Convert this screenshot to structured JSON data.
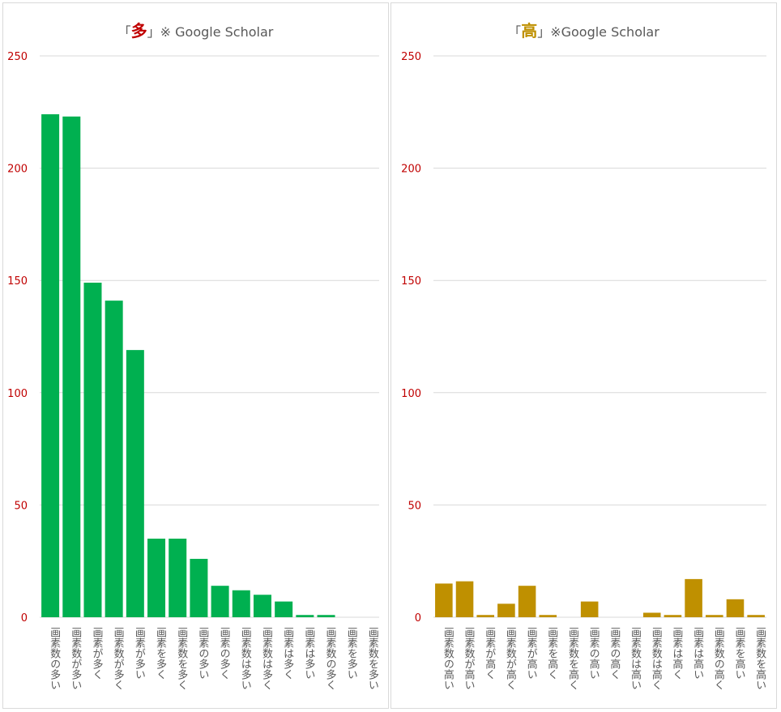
{
  "chart_data": [
    {
      "type": "bar",
      "title": {
        "open": "「",
        "kanji": "多",
        "rest": "」※ Google Scholar"
      },
      "kanji_color": "#c00000",
      "bar_color": "#00b050",
      "ylim": [
        0,
        250
      ],
      "yticks": [
        0,
        50,
        100,
        150,
        200,
        250
      ],
      "grid": true,
      "legend": "none",
      "categories": [
        "画素数の多い",
        "画素数が多い",
        "画素が多く",
        "画素数が多く",
        "画素が多い",
        "画素を多く",
        "画素数を多く",
        "画素の多い",
        "画素の多く",
        "画素数は多い",
        "画素数は多く",
        "画素は多く",
        "画素は多い",
        "画素数の多く",
        "画素を多い",
        "画素数を多い"
      ],
      "values": [
        224,
        223,
        149,
        141,
        119,
        35,
        35,
        26,
        14,
        12,
        10,
        7,
        1,
        1,
        0,
        0
      ]
    },
    {
      "type": "bar",
      "title": {
        "open": "「",
        "kanji": "高",
        "rest": "」※Google Scholar"
      },
      "kanji_color": "#bf9000",
      "bar_color": "#bf9000",
      "ylim": [
        0,
        250
      ],
      "yticks": [
        0,
        50,
        100,
        150,
        200,
        250
      ],
      "grid": true,
      "legend": "none",
      "categories": [
        "画素数の高い",
        "画素数が高い",
        "画素が高く",
        "画素数が高く",
        "画素が高い",
        "画素を高く",
        "画素数を高く",
        "画素の高い",
        "画素の高く",
        "画素数は高い",
        "画素数は高く",
        "画素は高く",
        "画素は高い",
        "画素数の高く",
        "画素を高い",
        "画素数を高い"
      ],
      "values": [
        15,
        16,
        1,
        6,
        14,
        1,
        0,
        7,
        0,
        0,
        2,
        1,
        17,
        1,
        8,
        1
      ]
    }
  ]
}
